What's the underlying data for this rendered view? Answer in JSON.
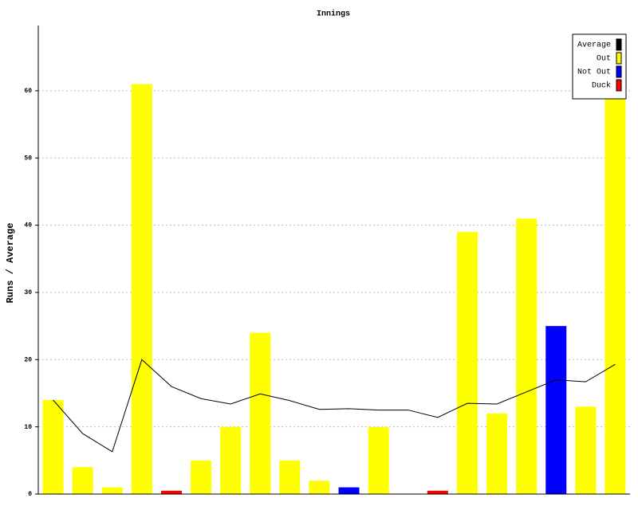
{
  "chart_data": {
    "type": "bar",
    "title": "Innings",
    "y_label": "Runs / Average",
    "ylim": [
      0,
      69
    ],
    "yticks": [
      0,
      10,
      20,
      30,
      40,
      50,
      60
    ],
    "grid": true,
    "legend": "top-right",
    "categories": [
      null,
      null,
      null,
      null,
      null,
      null,
      null,
      null,
      null,
      null,
      null,
      null,
      null,
      null,
      null,
      null,
      null,
      null,
      null,
      null
    ],
    "series": [
      {
        "name": "Average",
        "type": "line",
        "color": "#000000",
        "values": [
          14,
          9,
          6.3,
          20,
          16,
          14.2,
          13.4,
          14.9,
          13.9,
          12.6,
          12.7,
          12.5,
          12.5,
          11.4,
          13.5,
          13.4,
          15.2,
          17,
          16.7,
          19.3
        ]
      },
      {
        "name": "Out",
        "type": "bar",
        "color": "#ffff00",
        "values": [
          14,
          4,
          1,
          61,
          null,
          5,
          10,
          24,
          5,
          2,
          null,
          10,
          null,
          null,
          39,
          12,
          41,
          null,
          13,
          59
        ]
      },
      {
        "name": "Not Out",
        "type": "bar",
        "color": "#0000ff",
        "values": [
          null,
          null,
          null,
          null,
          null,
          null,
          null,
          null,
          null,
          null,
          1,
          null,
          null,
          null,
          null,
          null,
          null,
          25,
          null,
          null
        ]
      },
      {
        "name": "Duck",
        "type": "bar",
        "color": "#ff0000",
        "values": [
          null,
          null,
          null,
          null,
          0.5,
          null,
          null,
          null,
          null,
          null,
          null,
          null,
          null,
          0.5,
          null,
          null,
          null,
          null,
          null,
          null
        ]
      }
    ]
  }
}
